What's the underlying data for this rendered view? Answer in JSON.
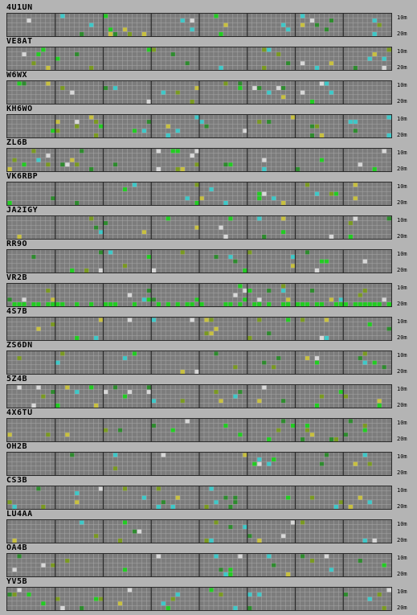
{
  "band_labels": {
    "top": "10m",
    "bottom": "20m"
  },
  "colors": {
    "background": "#b4b4b4",
    "grid_bg": "#7c7c7c",
    "grid_line": "#a8a8a8",
    "divider": "#2a2a2a",
    "status_green": "#22cc22",
    "status_dark_green": "#2e8b2e",
    "status_cyan": "#3ec8c8",
    "status_yellow": "#c8c040",
    "status_olive": "#7a9a20",
    "status_white": "#d8d8d8"
  },
  "stations": [
    {
      "callsign": "4U1UN"
    },
    {
      "callsign": "VE8AT"
    },
    {
      "callsign": "W6WX"
    },
    {
      "callsign": "KH6WO"
    },
    {
      "callsign": "ZL6B"
    },
    {
      "callsign": "VK6RBP"
    },
    {
      "callsign": "JA2IGY"
    },
    {
      "callsign": "RR9O"
    },
    {
      "callsign": "VR2B"
    },
    {
      "callsign": "4S7B"
    },
    {
      "callsign": "ZS6DN"
    },
    {
      "callsign": "5Z4B"
    },
    {
      "callsign": "4X6TU"
    },
    {
      "callsign": "OH2B"
    },
    {
      "callsign": "CS3B"
    },
    {
      "callsign": "LU4AA"
    },
    {
      "callsign": "OA4B"
    },
    {
      "callsign": "YV5B"
    }
  ]
}
